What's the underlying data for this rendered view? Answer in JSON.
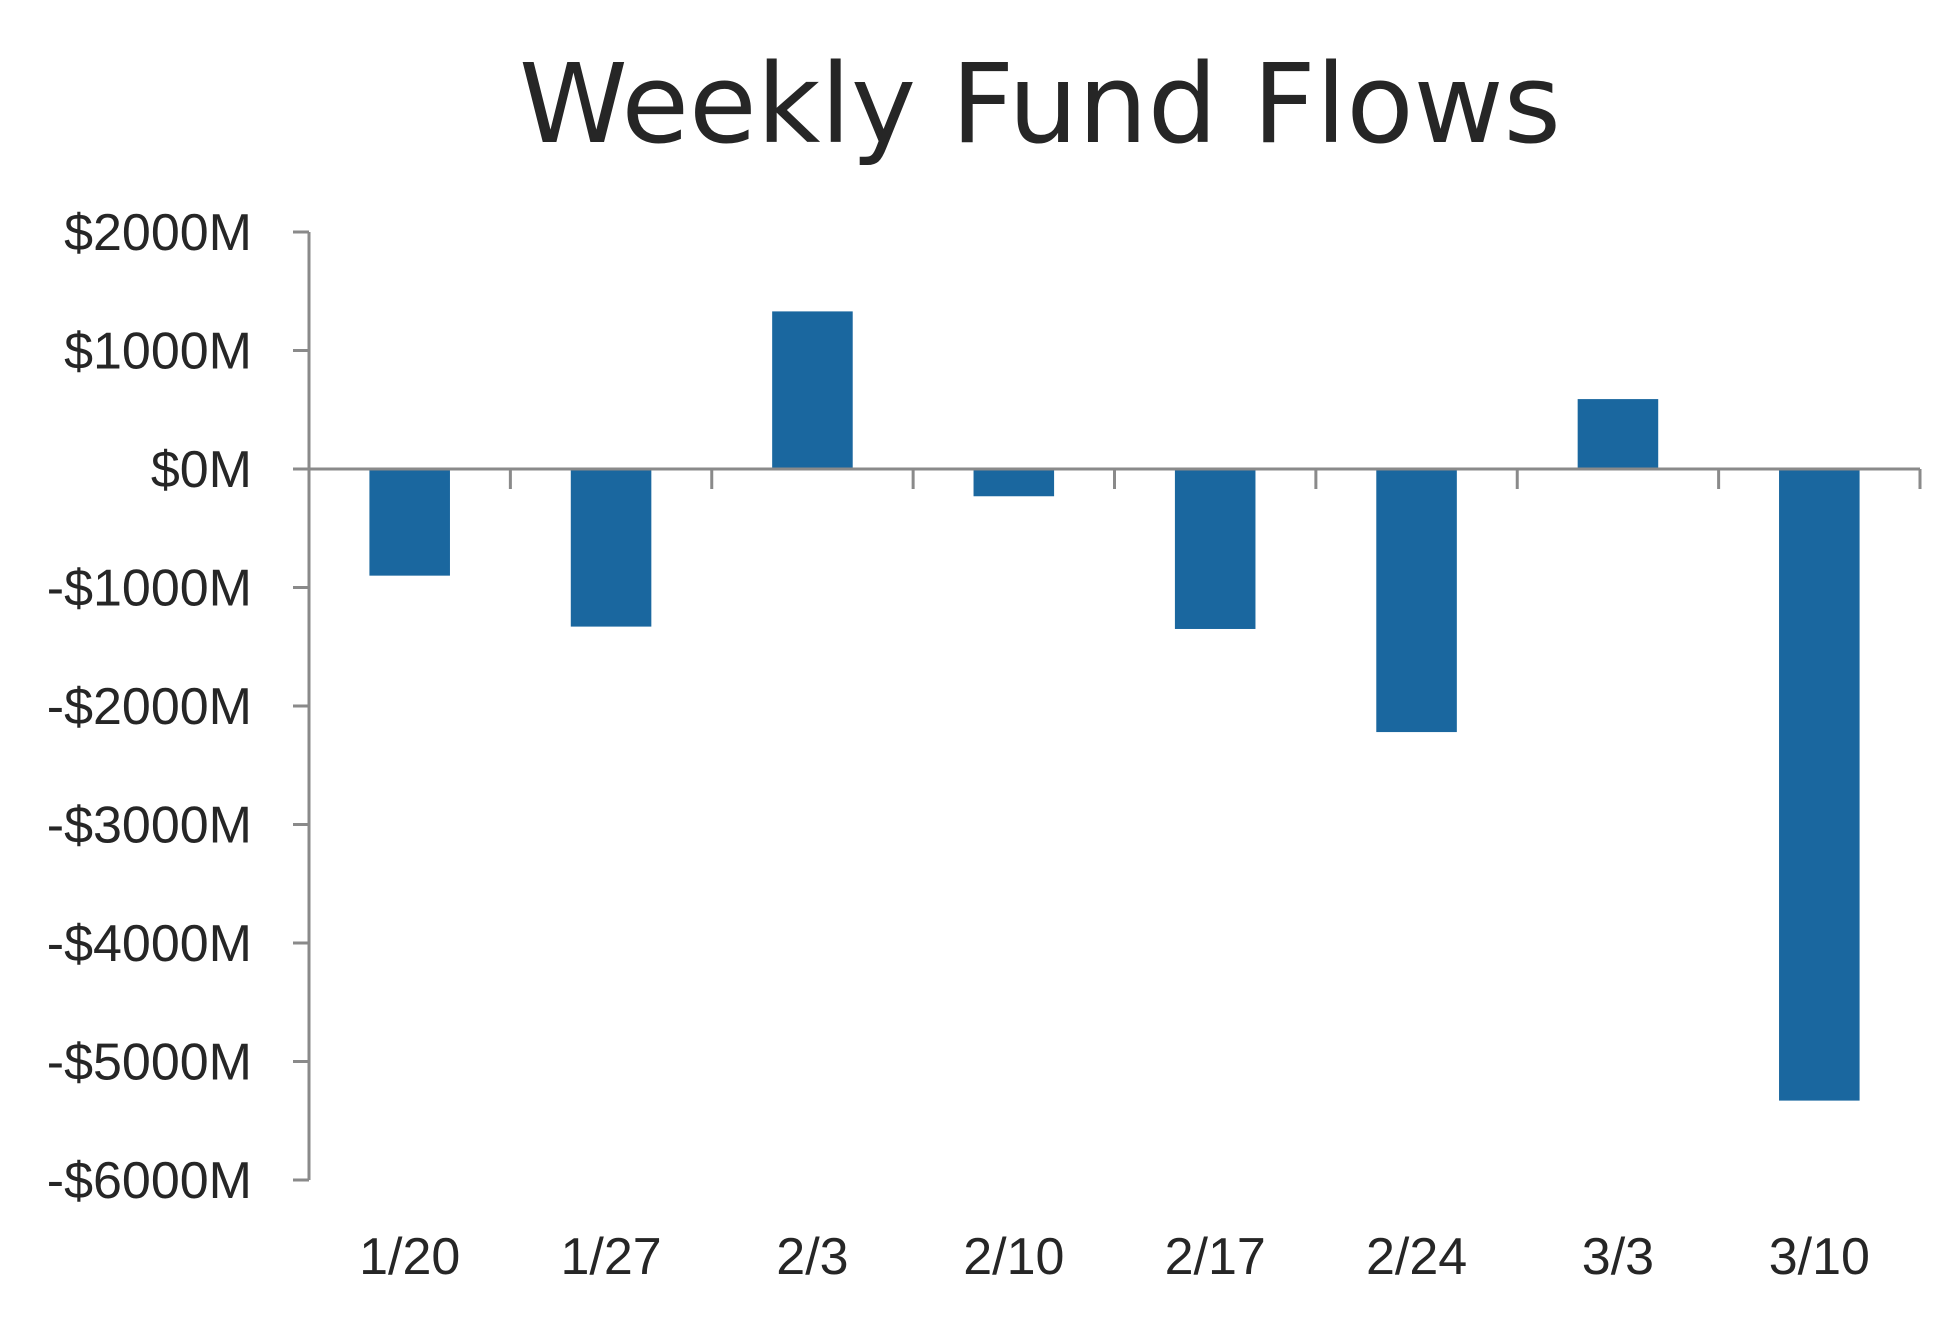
{
  "chart_data": {
    "type": "bar",
    "title": "Weekly Fund Flows",
    "xlabel": "",
    "ylabel": "",
    "categories": [
      "1/20",
      "1/27",
      "2/3",
      "2/10",
      "2/17",
      "2/24",
      "3/3",
      "3/10"
    ],
    "series": [
      {
        "values": [
          -900,
          -1330,
          1330,
          -230,
          -1350,
          -2220,
          590,
          -5330
        ]
      }
    ],
    "ylim": [
      -6000,
      2000
    ],
    "yticks": [
      2000,
      1000,
      0,
      -1000,
      -2000,
      -3000,
      -4000,
      -5000,
      -6000
    ],
    "ytick_labels": [
      "$2000M",
      "$1000M",
      "$0M",
      "-$1000M",
      "-$2000M",
      "-$3000M",
      "-$4000M",
      "-$5000M",
      "-$6000M"
    ],
    "grid": false,
    "legend": "none",
    "colors": {
      "bar": "#1a679f",
      "axis": "#8a8a8a",
      "text": "#262626"
    }
  }
}
